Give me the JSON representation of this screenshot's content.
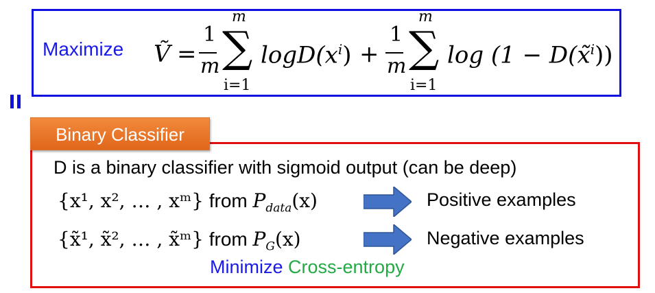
{
  "objective": {
    "action_label": "Maximize",
    "accent_color": "#1010e0"
  },
  "formula": {
    "lhs": "Ṽ",
    "equals": "=",
    "frac_num": "1",
    "frac_den": "m",
    "sum_upper": "m",
    "sum_lower": "i=1",
    "term1": "logD(x",
    "term1_sup": "i",
    "term1_close": ")",
    "plus": "+",
    "term2_open": "log (1 − D(x̃",
    "term2_sup": "i",
    "term2_close": "))"
  },
  "section": {
    "badge_label": "Binary Classifier",
    "badge_color": "#e97526",
    "border_color": "#e01010",
    "description": "D is a binary classifier with sigmoid output (can be deep)"
  },
  "rows": [
    {
      "set": "{x¹, x², … , xᵐ}",
      "from": "from",
      "dist": "P",
      "dist_sub": "data",
      "dist_arg": "(x)",
      "label": "Positive examples"
    },
    {
      "set": "{x̃¹, x̃², … , x̃ᵐ}",
      "from": "from",
      "dist": "P",
      "dist_sub": "G",
      "dist_arg": "(x)",
      "label": "Negative examples"
    }
  ],
  "footer": {
    "minimize": "Minimize",
    "cross_entropy": "Cross-entropy",
    "minimize_color": "#1a1ae6",
    "cross_entropy_color": "#22aa44"
  },
  "icons": {
    "arrow": "right-arrow-icon",
    "arrow_color": "#4472c4"
  }
}
